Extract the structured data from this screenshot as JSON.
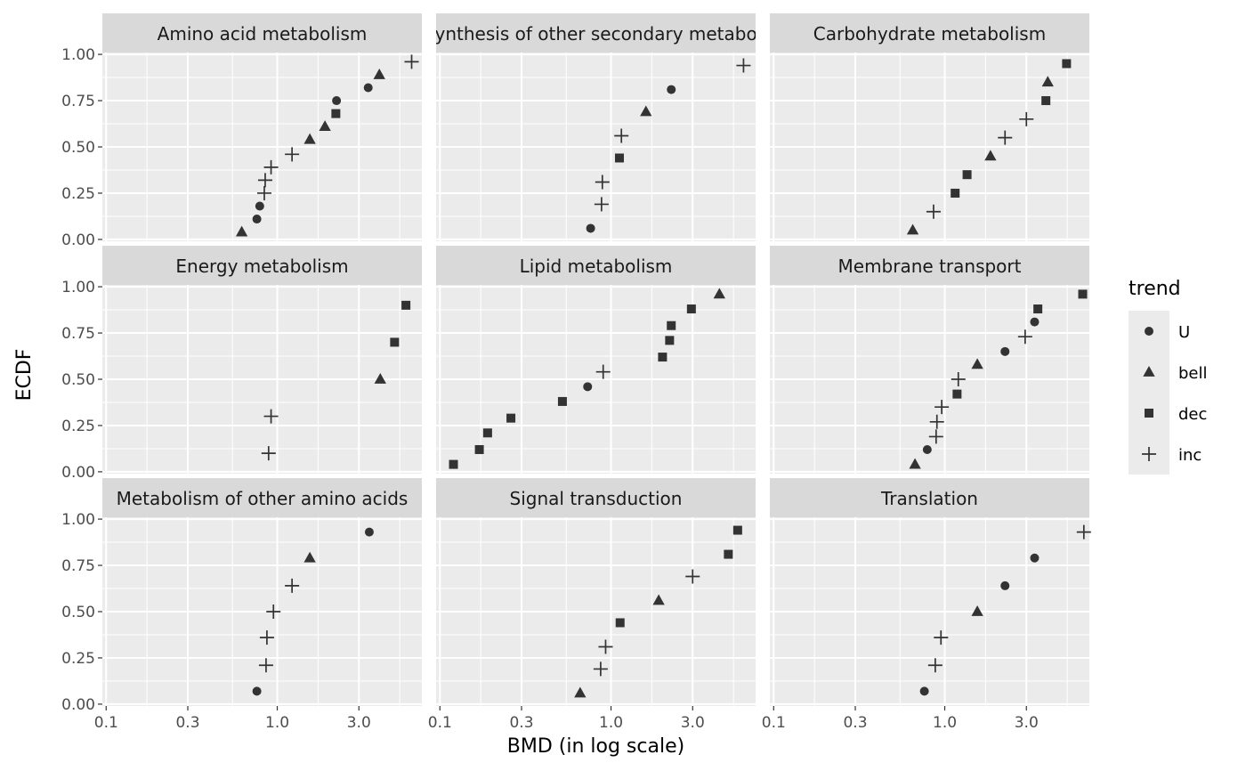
{
  "chart_data": {
    "type": "scatter",
    "xlabel": "BMD (in log scale)",
    "ylabel": "ECDF",
    "x_scale": "log10",
    "xlim": [
      0.095,
      7.0
    ],
    "ylim": [
      -0.01,
      1.01
    ],
    "x_ticks": [
      0.1,
      0.3,
      1.0,
      3.0
    ],
    "x_tick_labels": [
      "0.1",
      "0.3",
      "1.0",
      "3.0"
    ],
    "y_ticks": [
      0,
      0.25,
      0.5,
      0.75,
      1
    ],
    "y_tick_labels": [
      "0.00",
      "0.25",
      "0.50",
      "0.75",
      "1.00"
    ],
    "grid": true,
    "legend": {
      "title": "trend",
      "placement": "right",
      "entries": [
        {
          "key": "U",
          "label": "U",
          "shape": "circle"
        },
        {
          "key": "bell",
          "label": "bell",
          "shape": "triangle"
        },
        {
          "key": "dec",
          "label": "dec",
          "shape": "square"
        },
        {
          "key": "inc",
          "label": "inc",
          "shape": "plus"
        }
      ]
    },
    "panels": [
      {
        "title": "Amino acid metabolism",
        "points": [
          {
            "x": 0.62,
            "y": 0.04,
            "trend": "bell"
          },
          {
            "x": 0.76,
            "y": 0.11,
            "trend": "U"
          },
          {
            "x": 0.79,
            "y": 0.18,
            "trend": "U"
          },
          {
            "x": 0.84,
            "y": 0.25,
            "trend": "inc"
          },
          {
            "x": 0.85,
            "y": 0.32,
            "trend": "inc"
          },
          {
            "x": 0.92,
            "y": 0.39,
            "trend": "inc"
          },
          {
            "x": 1.22,
            "y": 0.46,
            "trend": "inc"
          },
          {
            "x": 1.55,
            "y": 0.54,
            "trend": "bell"
          },
          {
            "x": 1.9,
            "y": 0.61,
            "trend": "bell"
          },
          {
            "x": 2.2,
            "y": 0.68,
            "trend": "dec"
          },
          {
            "x": 2.22,
            "y": 0.75,
            "trend": "U"
          },
          {
            "x": 3.4,
            "y": 0.82,
            "trend": "U"
          },
          {
            "x": 3.95,
            "y": 0.89,
            "trend": "bell"
          },
          {
            "x": 6.1,
            "y": 0.96,
            "trend": "inc"
          }
        ]
      },
      {
        "title": "Biosynthesis of other secondary metabolites",
        "points": [
          {
            "x": 0.76,
            "y": 0.06,
            "trend": "U"
          },
          {
            "x": 0.88,
            "y": 0.19,
            "trend": "inc"
          },
          {
            "x": 0.89,
            "y": 0.31,
            "trend": "inc"
          },
          {
            "x": 1.12,
            "y": 0.44,
            "trend": "dec"
          },
          {
            "x": 1.15,
            "y": 0.56,
            "trend": "inc"
          },
          {
            "x": 1.6,
            "y": 0.69,
            "trend": "bell"
          },
          {
            "x": 2.25,
            "y": 0.81,
            "trend": "U"
          },
          {
            "x": 5.95,
            "y": 0.94,
            "trend": "inc"
          }
        ]
      },
      {
        "title": "Carbohydrate metabolism",
        "points": [
          {
            "x": 0.65,
            "y": 0.05,
            "trend": "bell"
          },
          {
            "x": 0.86,
            "y": 0.15,
            "trend": "inc"
          },
          {
            "x": 1.15,
            "y": 0.25,
            "trend": "dec"
          },
          {
            "x": 1.35,
            "y": 0.35,
            "trend": "dec"
          },
          {
            "x": 1.85,
            "y": 0.45,
            "trend": "bell"
          },
          {
            "x": 2.25,
            "y": 0.55,
            "trend": "inc"
          },
          {
            "x": 3.0,
            "y": 0.65,
            "trend": "inc"
          },
          {
            "x": 3.9,
            "y": 0.75,
            "trend": "dec"
          },
          {
            "x": 4.0,
            "y": 0.85,
            "trend": "bell"
          },
          {
            "x": 5.15,
            "y": 0.95,
            "trend": "dec"
          }
        ]
      },
      {
        "title": "Energy metabolism",
        "points": [
          {
            "x": 0.89,
            "y": 0.1,
            "trend": "inc"
          },
          {
            "x": 0.92,
            "y": 0.3,
            "trend": "inc"
          },
          {
            "x": 4.0,
            "y": 0.5,
            "trend": "bell"
          },
          {
            "x": 4.85,
            "y": 0.7,
            "trend": "dec"
          },
          {
            "x": 5.65,
            "y": 0.9,
            "trend": "dec"
          }
        ]
      },
      {
        "title": "Lipid metabolism",
        "points": [
          {
            "x": 0.12,
            "y": 0.04,
            "trend": "dec"
          },
          {
            "x": 0.17,
            "y": 0.12,
            "trend": "dec"
          },
          {
            "x": 0.19,
            "y": 0.21,
            "trend": "dec"
          },
          {
            "x": 0.26,
            "y": 0.29,
            "trend": "dec"
          },
          {
            "x": 0.52,
            "y": 0.38,
            "trend": "dec"
          },
          {
            "x": 0.73,
            "y": 0.46,
            "trend": "U"
          },
          {
            "x": 0.9,
            "y": 0.54,
            "trend": "inc"
          },
          {
            "x": 2.0,
            "y": 0.62,
            "trend": "dec"
          },
          {
            "x": 2.2,
            "y": 0.71,
            "trend": "dec"
          },
          {
            "x": 2.25,
            "y": 0.79,
            "trend": "dec"
          },
          {
            "x": 2.95,
            "y": 0.88,
            "trend": "dec"
          },
          {
            "x": 4.3,
            "y": 0.96,
            "trend": "bell"
          }
        ]
      },
      {
        "title": "Membrane transport",
        "points": [
          {
            "x": 0.67,
            "y": 0.04,
            "trend": "bell"
          },
          {
            "x": 0.79,
            "y": 0.12,
            "trend": "U"
          },
          {
            "x": 0.89,
            "y": 0.19,
            "trend": "inc"
          },
          {
            "x": 0.9,
            "y": 0.27,
            "trend": "inc"
          },
          {
            "x": 0.96,
            "y": 0.35,
            "trend": "inc"
          },
          {
            "x": 1.18,
            "y": 0.42,
            "trend": "dec"
          },
          {
            "x": 1.2,
            "y": 0.5,
            "trend": "inc"
          },
          {
            "x": 1.55,
            "y": 0.58,
            "trend": "bell"
          },
          {
            "x": 2.25,
            "y": 0.65,
            "trend": "U"
          },
          {
            "x": 2.95,
            "y": 0.73,
            "trend": "inc"
          },
          {
            "x": 3.35,
            "y": 0.81,
            "trend": "U"
          },
          {
            "x": 3.5,
            "y": 0.88,
            "trend": "dec"
          },
          {
            "x": 6.4,
            "y": 0.96,
            "trend": "dec"
          }
        ]
      },
      {
        "title": "Metabolism of other amino acids",
        "points": [
          {
            "x": 0.76,
            "y": 0.07,
            "trend": "U"
          },
          {
            "x": 0.86,
            "y": 0.21,
            "trend": "inc"
          },
          {
            "x": 0.87,
            "y": 0.36,
            "trend": "inc"
          },
          {
            "x": 0.95,
            "y": 0.5,
            "trend": "inc"
          },
          {
            "x": 1.22,
            "y": 0.64,
            "trend": "inc"
          },
          {
            "x": 1.55,
            "y": 0.79,
            "trend": "bell"
          },
          {
            "x": 3.45,
            "y": 0.93,
            "trend": "U"
          }
        ]
      },
      {
        "title": "Signal transduction",
        "points": [
          {
            "x": 0.66,
            "y": 0.06,
            "trend": "bell"
          },
          {
            "x": 0.87,
            "y": 0.19,
            "trend": "inc"
          },
          {
            "x": 0.93,
            "y": 0.31,
            "trend": "inc"
          },
          {
            "x": 1.13,
            "y": 0.44,
            "trend": "dec"
          },
          {
            "x": 1.9,
            "y": 0.56,
            "trend": "bell"
          },
          {
            "x": 3.0,
            "y": 0.69,
            "trend": "inc"
          },
          {
            "x": 4.85,
            "y": 0.81,
            "trend": "dec"
          },
          {
            "x": 5.5,
            "y": 0.94,
            "trend": "dec"
          }
        ]
      },
      {
        "title": "Translation",
        "points": [
          {
            "x": 0.76,
            "y": 0.07,
            "trend": "U"
          },
          {
            "x": 0.88,
            "y": 0.21,
            "trend": "inc"
          },
          {
            "x": 0.95,
            "y": 0.36,
            "trend": "inc"
          },
          {
            "x": 1.55,
            "y": 0.5,
            "trend": "bell"
          },
          {
            "x": 2.25,
            "y": 0.64,
            "trend": "U"
          },
          {
            "x": 3.35,
            "y": 0.79,
            "trend": "U"
          },
          {
            "x": 6.5,
            "y": 0.93,
            "trend": "inc"
          }
        ]
      }
    ]
  }
}
